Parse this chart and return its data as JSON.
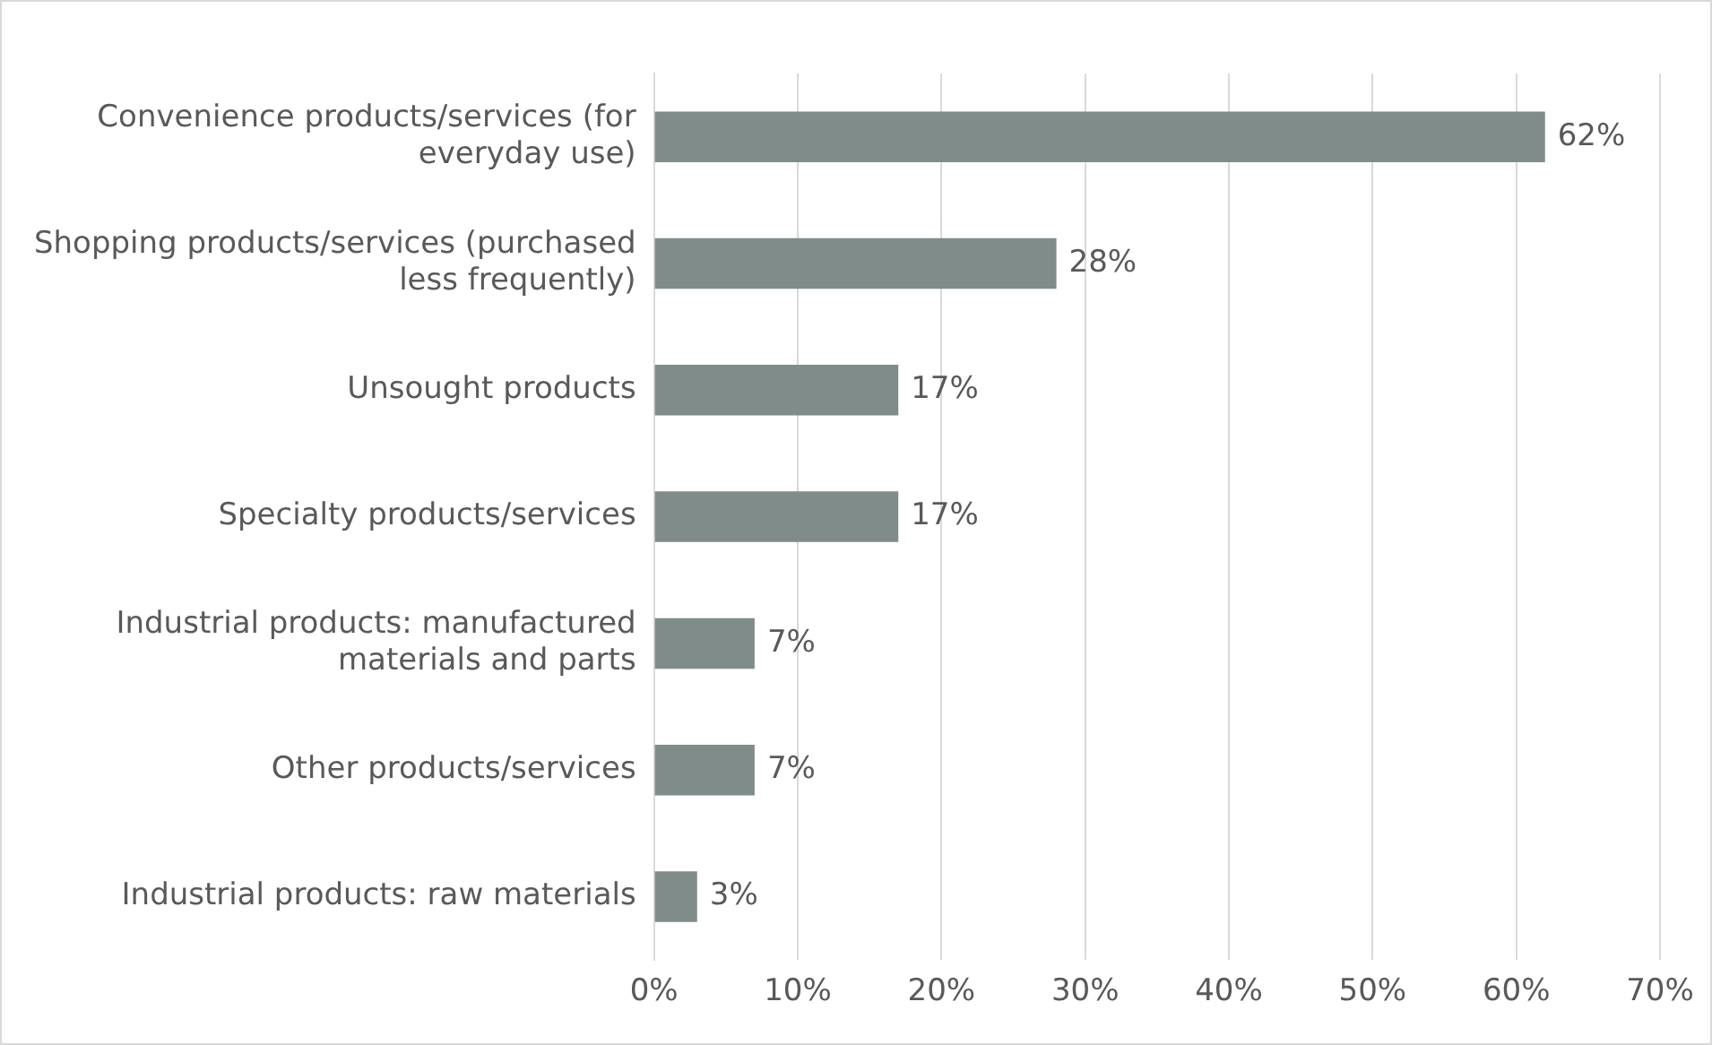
{
  "chart_data": {
    "type": "bar",
    "orientation": "horizontal",
    "categories": [
      "Convenience products/services (for everyday use)",
      "Shopping products/services (purchased less frequently)",
      "Unsought products",
      "Specialty products/services",
      "Industrial products: manufactured materials and parts",
      "Other products/services",
      "Industrial products: raw materials"
    ],
    "values": [
      62,
      28,
      17,
      17,
      7,
      7,
      3
    ],
    "value_labels": [
      "62%",
      "28%",
      "17%",
      "17%",
      "7%",
      "7%",
      "3%"
    ],
    "color": "#7f8c8a",
    "xlim": [
      0,
      70
    ],
    "xticks": [
      {
        "value": 0,
        "label": "0%"
      },
      {
        "value": 10,
        "label": "10%"
      },
      {
        "value": 20,
        "label": "20%"
      },
      {
        "value": 30,
        "label": "30%"
      },
      {
        "value": 40,
        "label": "40%"
      },
      {
        "value": 50,
        "label": "50%"
      },
      {
        "value": 60,
        "label": "60%"
      },
      {
        "value": 70,
        "label": "70%"
      }
    ],
    "grid": "x"
  }
}
